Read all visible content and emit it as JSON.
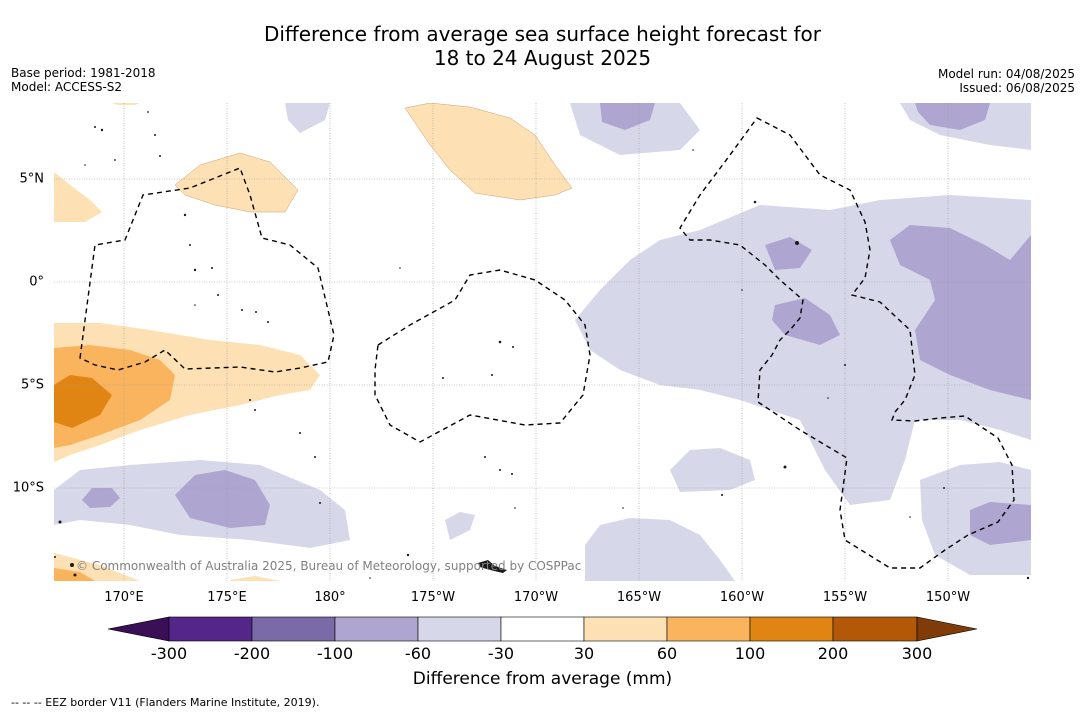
{
  "title_line1": "Difference from average sea surface height forecast for",
  "title_line2": "18 to 24 August 2025",
  "meta_left": [
    "Base period: 1981-2018",
    "Model: ACCESS-S2"
  ],
  "meta_right": [
    "Model run: 04/08/2025",
    "Issued: 06/08/2025"
  ],
  "longitude_labels": [
    "170°E",
    "175°E",
    "180°",
    "175°W",
    "170°W",
    "165°W",
    "160°W",
    "155°W",
    "150°W"
  ],
  "latitude_labels": [
    "5°N",
    "0°",
    "5°S",
    "10°S"
  ],
  "copyright": "© Commonwealth of Australia 2025, Bureau of Meteorology, supported by COSPPac",
  "colorbar": {
    "label": "Difference from average (mm)",
    "ticks": [
      "-300",
      "-200",
      "-100",
      "-60",
      "-30",
      "30",
      "60",
      "100",
      "200",
      "300"
    ],
    "colors": [
      "#3b0f57",
      "#54268a",
      "#7b6aa8",
      "#aea6d0",
      "#d7d7ea",
      "#ffffff",
      "#fde0b3",
      "#fab45e",
      "#e08414",
      "#b35806",
      "#7f3b08"
    ]
  },
  "eez_note": "--  --  -- EEZ border V11 (Flanders Marine Institute, 2019)."
}
